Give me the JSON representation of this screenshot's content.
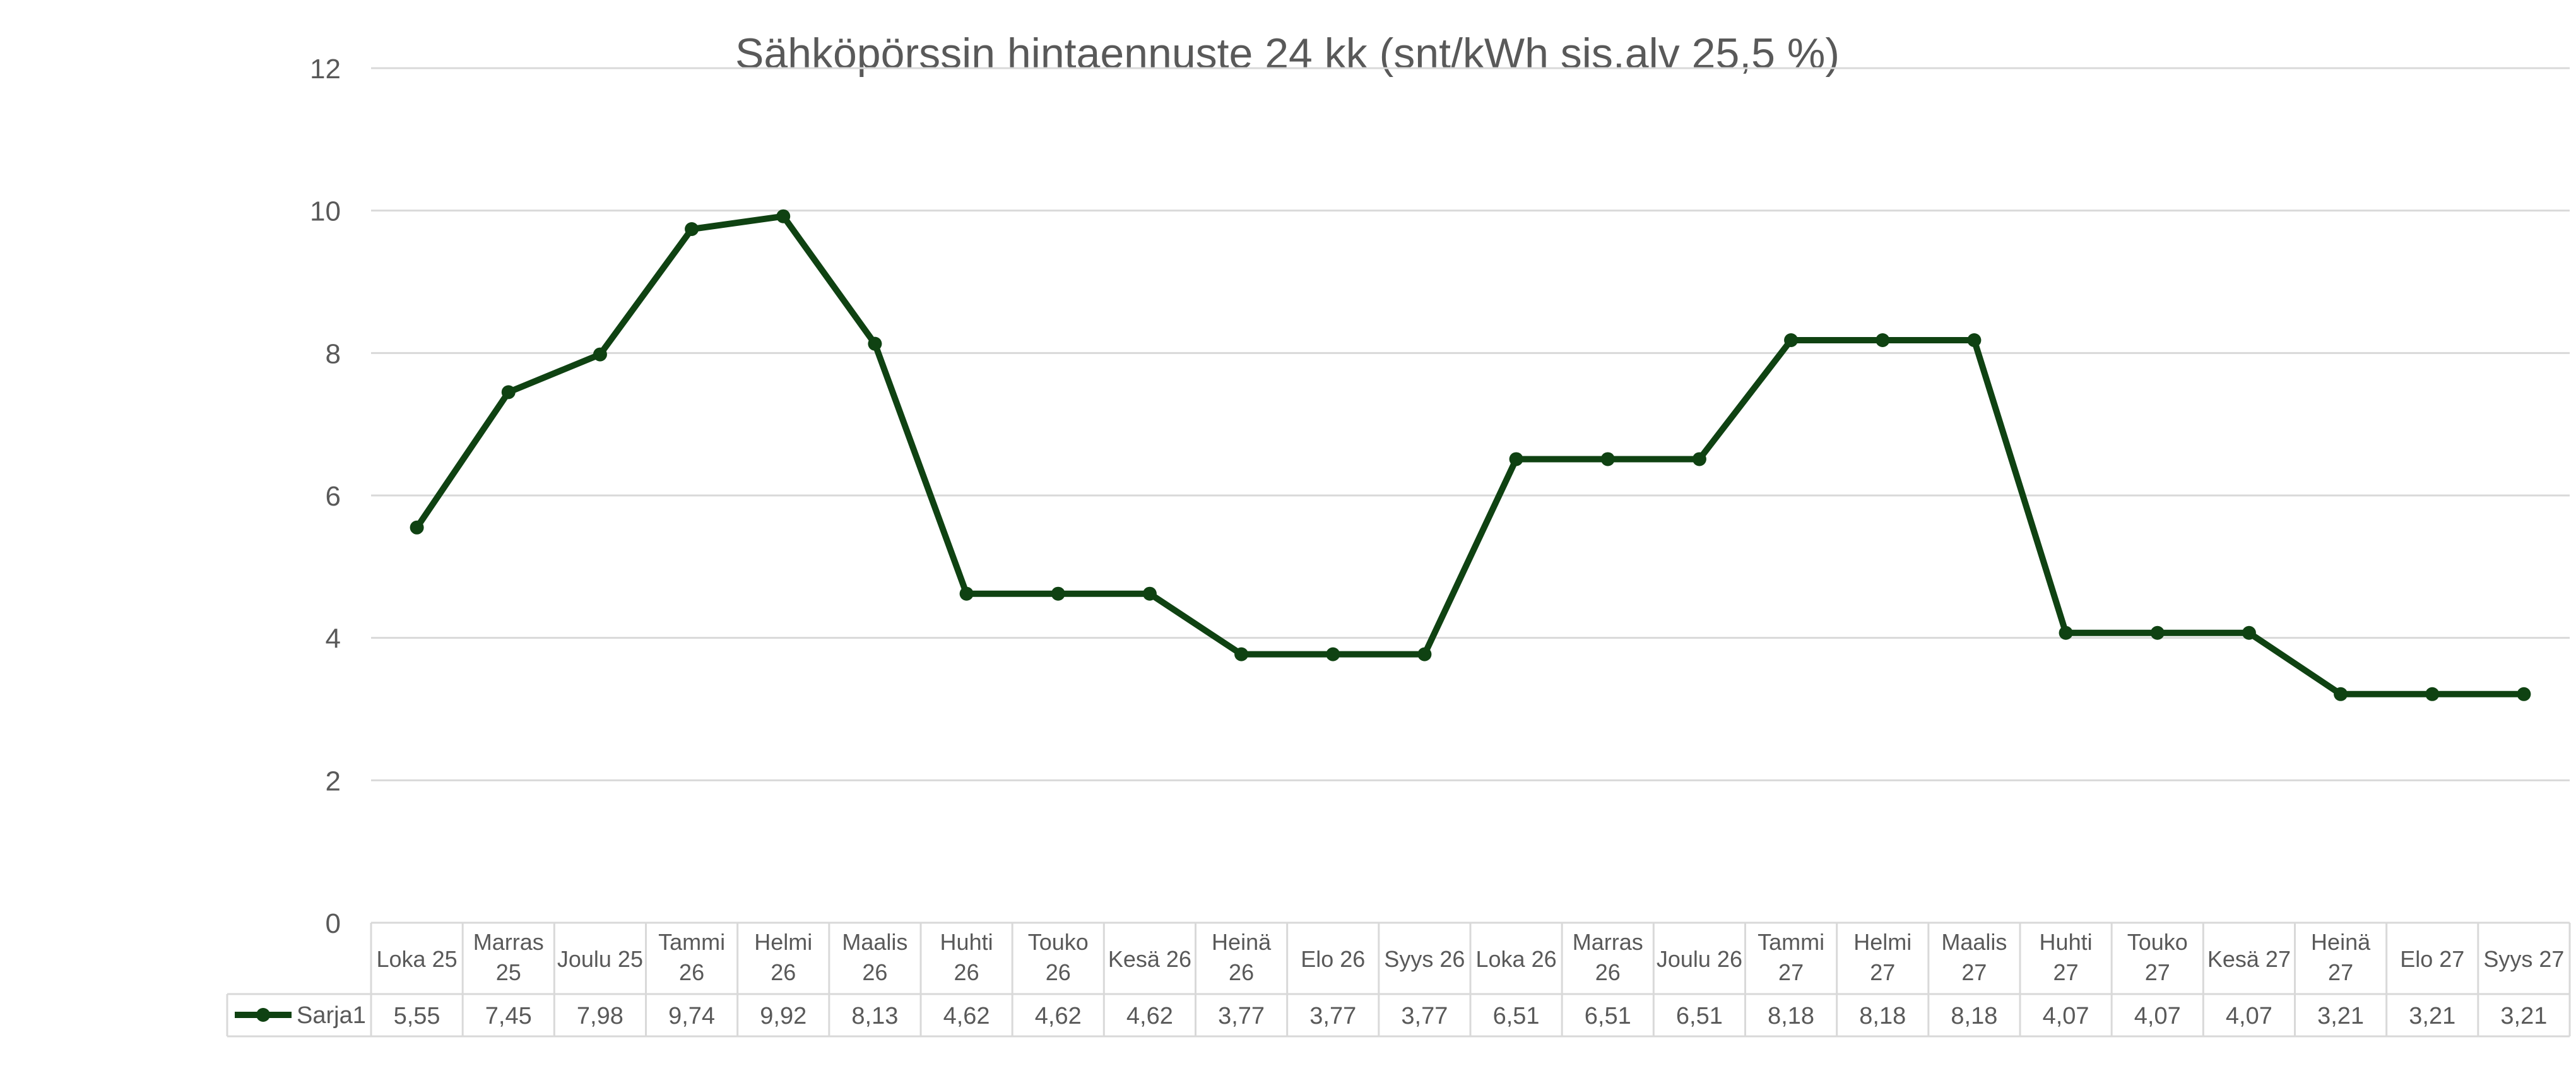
{
  "chart_data": {
    "type": "line",
    "title": "Sähköpörssin hintaennuste 24 kk (snt/kWh sis.alv 25,5 %)",
    "ylim": [
      0,
      12
    ],
    "yticks": [
      "0",
      "2",
      "4",
      "6",
      "8",
      "10",
      "12"
    ],
    "grid": true,
    "legend_placement": "data-table",
    "categories": [
      [
        "Loka 25"
      ],
      [
        "Marras",
        "25"
      ],
      [
        "Joulu 25"
      ],
      [
        "Tammi",
        "26"
      ],
      [
        "Helmi",
        "26"
      ],
      [
        "Maalis",
        "26"
      ],
      [
        "Huhti",
        "26"
      ],
      [
        "Touko",
        "26"
      ],
      [
        "Kesä 26"
      ],
      [
        "Heinä",
        "26"
      ],
      [
        "Elo 26"
      ],
      [
        "Syys 26"
      ],
      [
        "Loka 26"
      ],
      [
        "Marras",
        "26"
      ],
      [
        "Joulu 26"
      ],
      [
        "Tammi",
        "27"
      ],
      [
        "Helmi",
        "27"
      ],
      [
        "Maalis",
        "27"
      ],
      [
        "Huhti",
        "27"
      ],
      [
        "Touko",
        "27"
      ],
      [
        "Kesä 27"
      ],
      [
        "Heinä",
        "27"
      ],
      [
        "Elo 27"
      ],
      [
        "Syys 27"
      ]
    ],
    "series": [
      {
        "name": "Sarja1",
        "color": "#0f4212",
        "values": [
          5.55,
          7.45,
          7.98,
          9.74,
          9.92,
          8.13,
          4.62,
          4.62,
          4.62,
          3.77,
          3.77,
          3.77,
          6.51,
          6.51,
          6.51,
          8.18,
          8.18,
          8.18,
          4.07,
          4.07,
          4.07,
          3.21,
          3.21,
          3.21
        ],
        "value_labels": [
          "5,55",
          "7,45",
          "7,98",
          "9,74",
          "9,92",
          "8,13",
          "4,62",
          "4,62",
          "4,62",
          "3,77",
          "3,77",
          "3,77",
          "6,51",
          "6,51",
          "6,51",
          "8,18",
          "8,18",
          "8,18",
          "4,07",
          "4,07",
          "4,07",
          "3,21",
          "3,21",
          "3,21"
        ]
      }
    ],
    "colors": {
      "grid": "#d9d9d9",
      "text": "#595959",
      "table_border": "#d9d9d9"
    }
  }
}
